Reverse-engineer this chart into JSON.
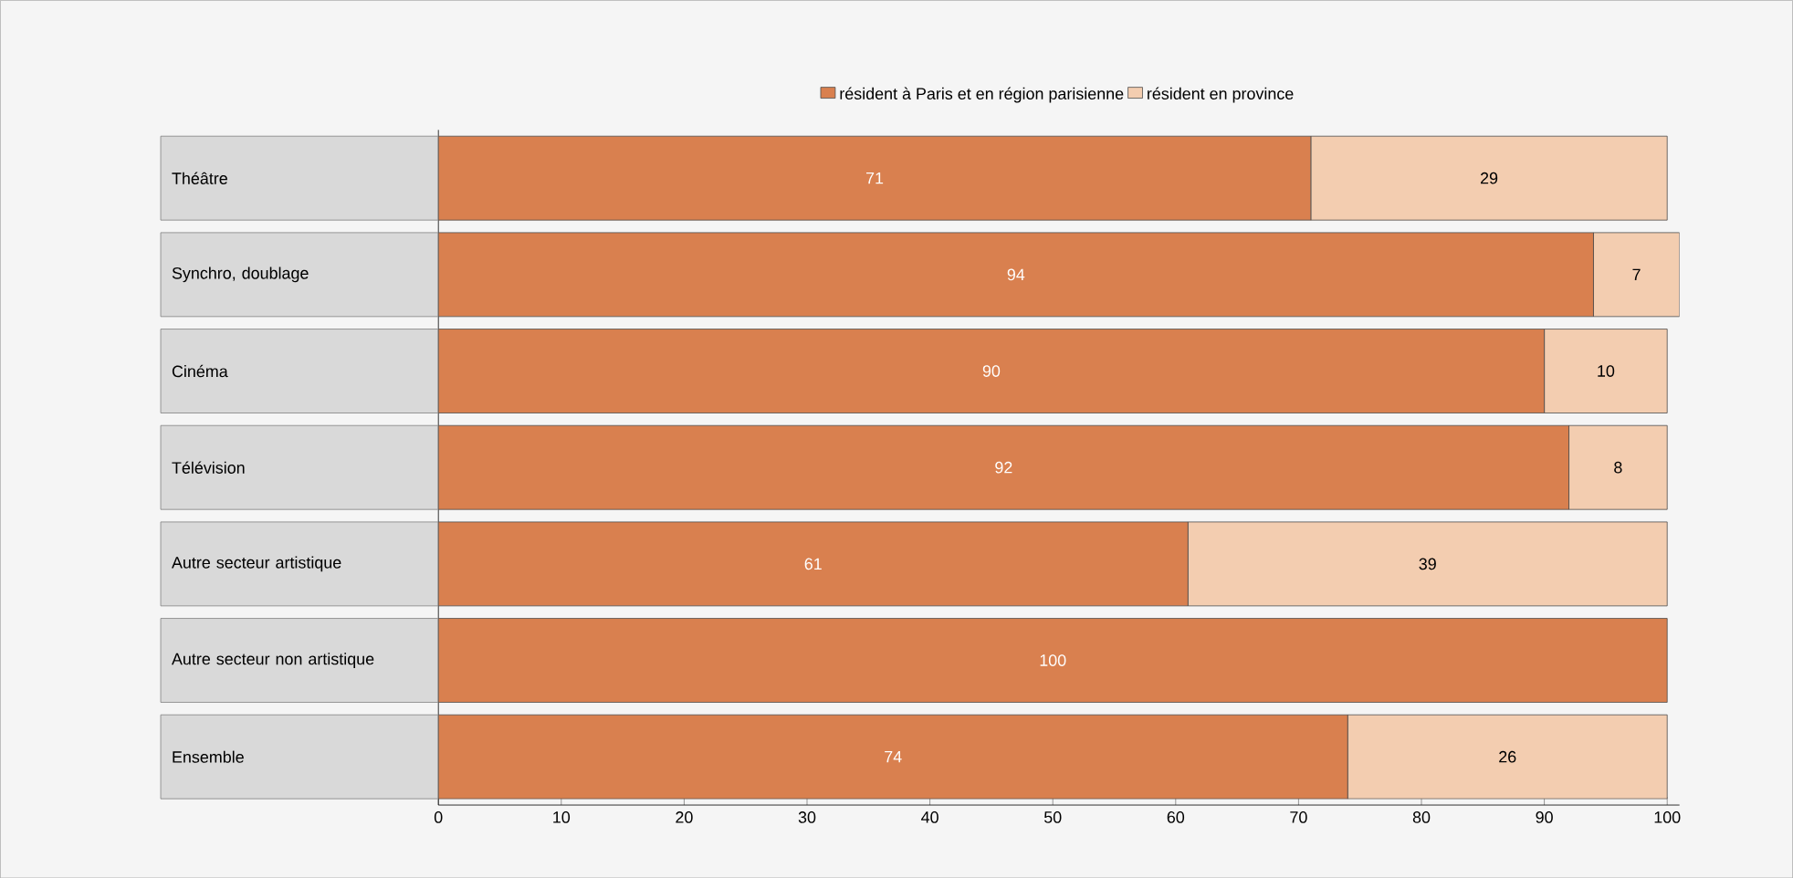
{
  "chart_data": {
    "type": "bar",
    "orientation": "horizontal",
    "stacked": true,
    "legend": "top",
    "categories": [
      "Théâtre",
      "Synchro, doublage",
      "Cinéma",
      "Télévision",
      "Autre secteur artistique",
      "Autre secteur non artistique",
      "Ensemble"
    ],
    "series": [
      {
        "name": "résident à Paris et en région parisienne",
        "color": "#d9804f",
        "values": [
          71,
          94,
          90,
          92,
          61,
          100,
          74
        ],
        "value_labels": [
          "71",
          "94",
          "90",
          "92",
          "61",
          "100",
          "74"
        ]
      },
      {
        "name": "résident en province",
        "color": "#f3cdb0",
        "values": [
          29,
          7,
          10,
          8,
          39,
          0,
          26
        ],
        "value_labels": [
          "29",
          "7",
          "10",
          "8",
          "39",
          null,
          "26"
        ]
      }
    ],
    "xlim": [
      0,
      101
    ],
    "xticks": [
      0,
      10,
      20,
      30,
      40,
      50,
      60,
      70,
      80,
      90,
      100
    ]
  }
}
